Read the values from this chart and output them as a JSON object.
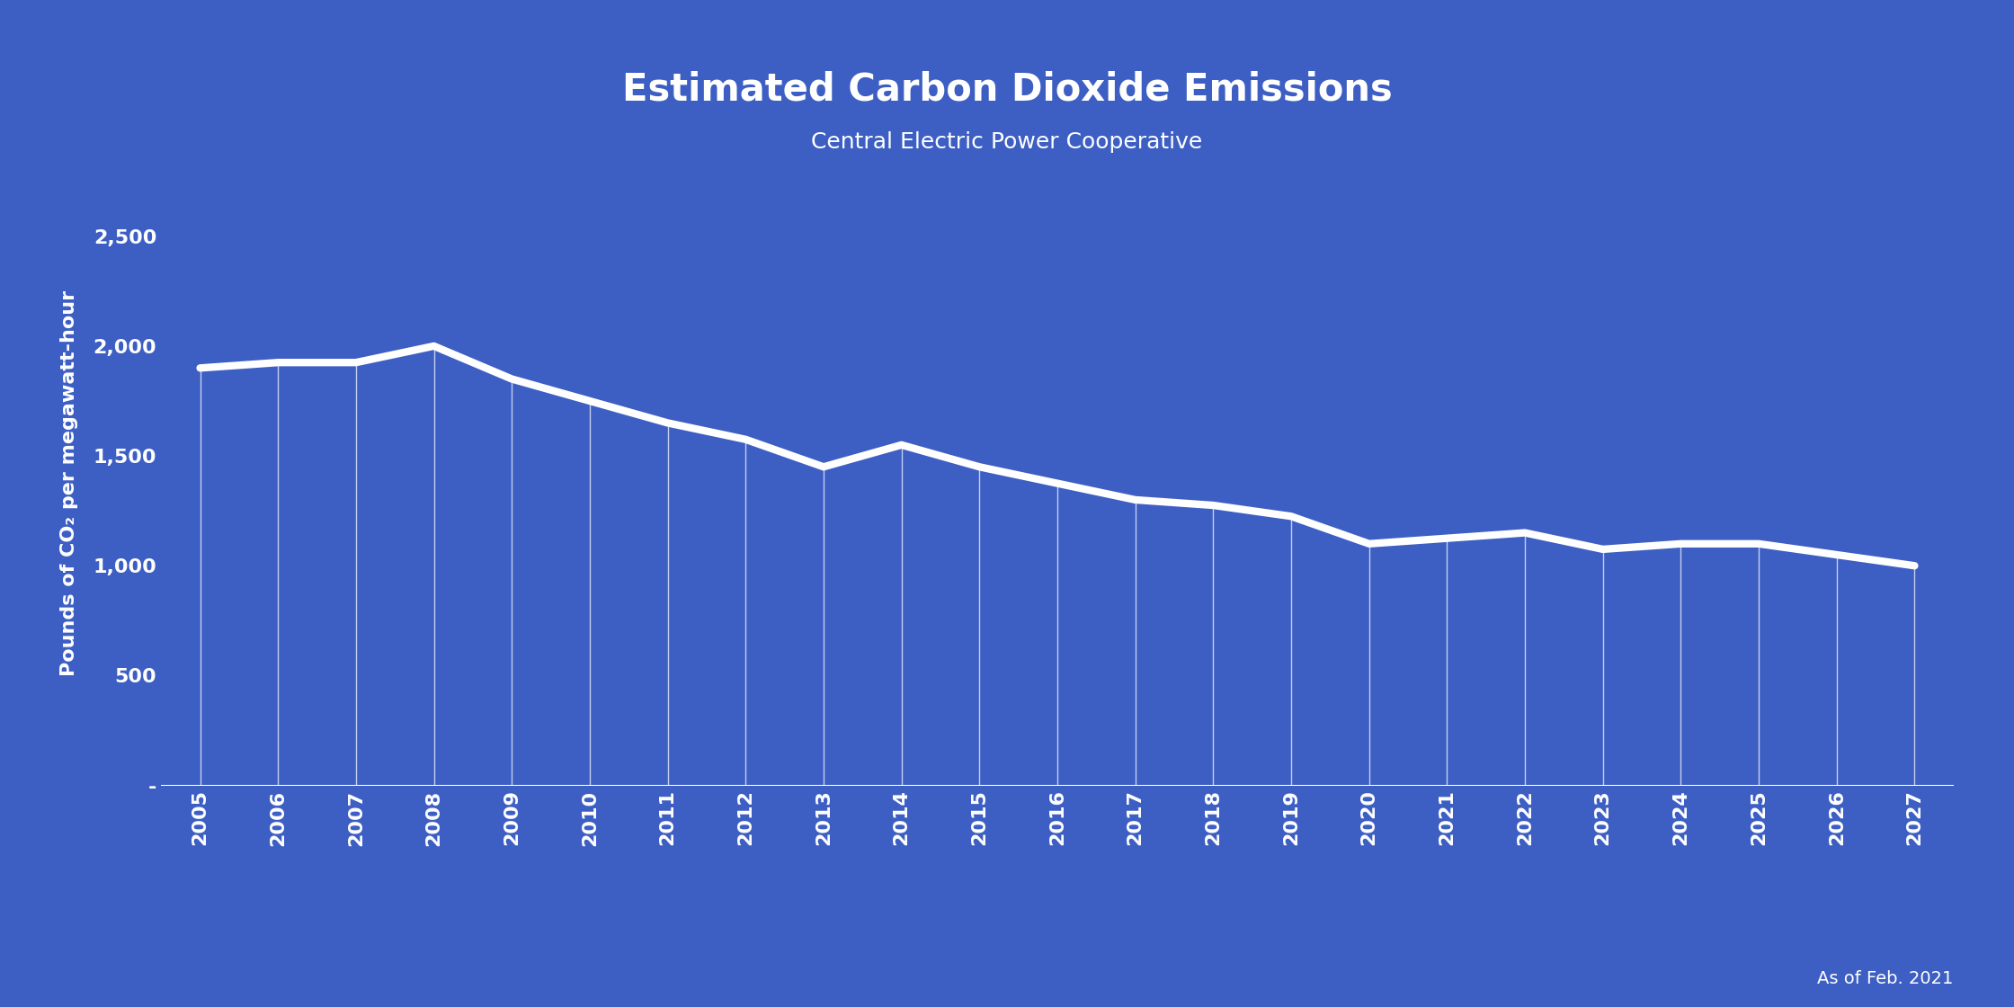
{
  "title": "Estimated Carbon Dioxide Emissions",
  "subtitle": "Central Electric Power Cooperative",
  "ylabel": "Pounds of CO₂ per megawatt-hour",
  "footnote": "As of Feb. 2021",
  "background_color": "#3d5fc4",
  "line_color": "#ffffff",
  "text_color": "#ffffff",
  "grid_color": "#ffffff",
  "years": [
    2005,
    2006,
    2007,
    2008,
    2009,
    2010,
    2011,
    2012,
    2013,
    2014,
    2015,
    2016,
    2017,
    2018,
    2019,
    2020,
    2021,
    2022,
    2023,
    2024,
    2025,
    2026,
    2027
  ],
  "values": [
    1900,
    1925,
    1925,
    2000,
    1850,
    1750,
    1650,
    1575,
    1450,
    1550,
    1450,
    1375,
    1300,
    1275,
    1225,
    1100,
    1125,
    1150,
    1075,
    1100,
    1100,
    1050,
    1000
  ],
  "ylim": [
    0,
    2750
  ],
  "yticks": [
    0,
    500,
    1000,
    1500,
    2000,
    2500
  ],
  "ytick_labels": [
    "-",
    "500",
    "1,000",
    "1,500",
    "2,000",
    "2,500"
  ],
  "line_width": 6,
  "title_fontsize": 30,
  "subtitle_fontsize": 18,
  "ylabel_fontsize": 16,
  "tick_fontsize": 16,
  "footnote_fontsize": 14
}
